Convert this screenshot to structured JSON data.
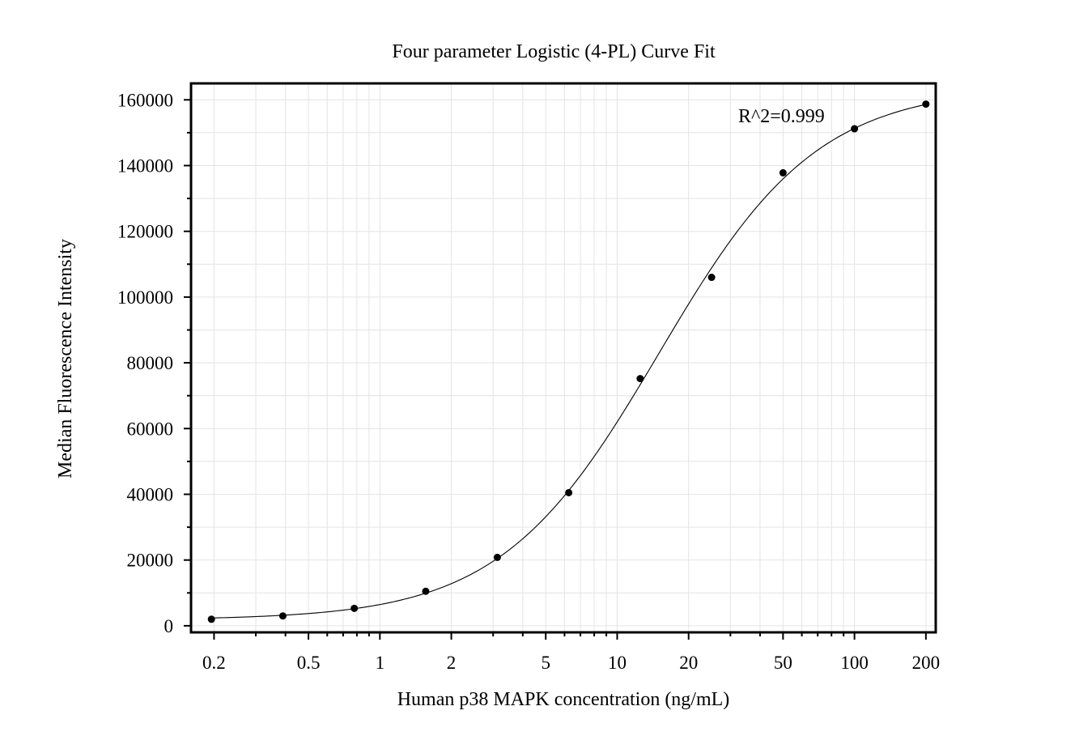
{
  "chart_data": {
    "type": "scatter",
    "title": "Four parameter Logistic (4-PL) Curve Fit",
    "xlabel": "Human p38 MAPK concentration (ng/mL)",
    "ylabel": "Median Fluorescence Intensity",
    "x_scale": "log",
    "xlim": [
      0.16,
      220
    ],
    "ylim": [
      -2000,
      165000
    ],
    "x_ticks": [
      0.2,
      0.5,
      1,
      2,
      5,
      10,
      20,
      50,
      100,
      200
    ],
    "x_tick_labels": [
      "0.2",
      "0.5",
      "1",
      "2",
      "5",
      "10",
      "20",
      "50",
      "100",
      "200"
    ],
    "y_ticks": [
      0,
      20000,
      40000,
      60000,
      80000,
      100000,
      120000,
      140000,
      160000
    ],
    "y_tick_labels": [
      "0",
      "20000",
      "40000",
      "60000",
      "80000",
      "100000",
      "120000",
      "140000",
      "160000"
    ],
    "grid": true,
    "points": {
      "x": [
        0.195,
        0.39,
        0.78,
        1.56,
        3.125,
        6.25,
        12.5,
        25,
        50,
        100,
        200
      ],
      "y": [
        2000,
        3000,
        5300,
        10500,
        20800,
        40500,
        75200,
        106000,
        137800,
        151200,
        158700
      ]
    },
    "fit": {
      "model": "4PL",
      "bottom": 1800,
      "top": 164000,
      "ec50": 15,
      "hill": 1.3
    },
    "annotations": [
      {
        "text": "R^2=0.999"
      }
    ]
  }
}
